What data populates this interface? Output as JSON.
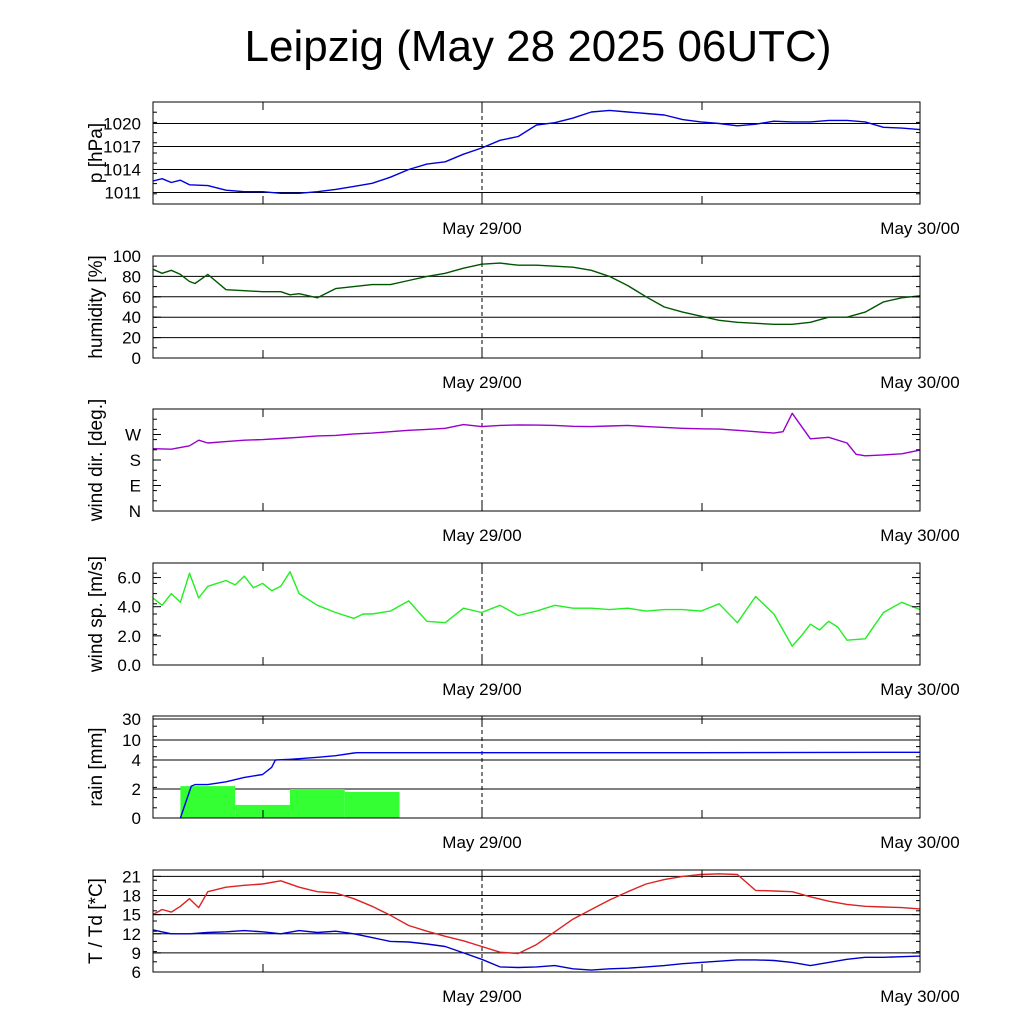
{
  "title": "Leipzig (May 28 2025 06UTC)",
  "colors": {
    "pressure": "#0000dd",
    "humidity": "#005500",
    "wind_dir": "#9900cc",
    "wind_sp": "#22ee22",
    "rain_line": "#0000ee",
    "rain_bar": "#33ff33",
    "temp": "#dd2222",
    "dewpoint": "#0000cc"
  },
  "chart_data": [
    {
      "type": "line",
      "ylabel": "p [hPa]",
      "x_ticks": [
        "May 29/00",
        "May 30/00"
      ],
      "x_range_hours": [
        0,
        42
      ],
      "ylim": [
        1009.5,
        1022.8
      ],
      "y_ticks": [
        "1020",
        "1017",
        "1014",
        "1011"
      ],
      "y_tick_values": [
        1020,
        1017,
        1014,
        1011
      ],
      "grid": true,
      "series": [
        {
          "color_key": "pressure",
          "x": [
            0,
            0.5,
            1,
            1.5,
            2,
            3,
            4,
            5,
            6,
            7,
            8,
            9,
            10,
            11,
            12,
            13,
            14,
            15,
            16,
            17,
            18,
            19,
            20,
            21,
            22,
            23,
            24,
            25,
            26,
            27,
            28,
            29,
            30,
            31,
            32,
            33,
            34,
            35,
            36,
            37,
            38,
            39,
            40,
            41,
            42
          ],
          "y": [
            1012.5,
            1012.8,
            1012.3,
            1012.6,
            1012.0,
            1011.9,
            1011.3,
            1011.1,
            1011.1,
            1010.9,
            1010.9,
            1011.1,
            1011.4,
            1011.8,
            1012.2,
            1013.0,
            1014.0,
            1014.7,
            1015.0,
            1016.0,
            1016.8,
            1017.8,
            1018.3,
            1019.8,
            1020.1,
            1020.7,
            1021.5,
            1021.7,
            1021.5,
            1021.3,
            1021.1,
            1020.5,
            1020.2,
            1020.0,
            1019.7,
            1019.9,
            1020.3,
            1020.2,
            1020.2,
            1020.4,
            1020.4,
            1020.2,
            1019.5,
            1019.4,
            1019.2
          ]
        }
      ]
    },
    {
      "type": "line",
      "ylabel": "humidity [%]",
      "x_ticks": [
        "May 29/00",
        "May 30/00"
      ],
      "x_range_hours": [
        0,
        42
      ],
      "ylim": [
        0,
        100
      ],
      "y_ticks": [
        "100",
        "80",
        "60",
        "40",
        "20",
        "0"
      ],
      "y_tick_values": [
        100,
        80,
        60,
        40,
        20,
        0
      ],
      "grid": true,
      "series": [
        {
          "color_key": "humidity",
          "x": [
            0,
            0.5,
            1,
            1.5,
            2,
            2.3,
            3,
            4,
            5,
            6,
            7,
            7.5,
            8,
            9,
            10,
            11,
            12,
            13,
            14,
            15,
            16,
            17,
            18,
            19,
            20,
            21,
            22,
            23,
            24,
            25,
            26,
            27,
            28,
            29,
            30,
            31,
            32,
            33,
            34,
            35,
            36,
            37,
            38,
            39,
            40,
            41,
            42
          ],
          "y": [
            87,
            83,
            86,
            82,
            75,
            73,
            82,
            67,
            66,
            65,
            65,
            62,
            63,
            59,
            68,
            70,
            72,
            72,
            76,
            80,
            83,
            88,
            92,
            93,
            91,
            91,
            90,
            89,
            86,
            80,
            71,
            60,
            50,
            45,
            41,
            37,
            35,
            34,
            33,
            33,
            35,
            40,
            40,
            45,
            55,
            59,
            61
          ]
        }
      ]
    },
    {
      "type": "line",
      "ylabel": "wind dir. [deg.]",
      "x_ticks": [
        "May 29/00",
        "May 30/00"
      ],
      "x_range_hours": [
        0,
        42
      ],
      "ylim": [
        0,
        360
      ],
      "y_ticks": [
        "W",
        "S",
        "E",
        "N"
      ],
      "y_tick_values": [
        270,
        180,
        90,
        0
      ],
      "grid": false,
      "series": [
        {
          "color_key": "wind_dir",
          "x": [
            0,
            1,
            2,
            2.5,
            3,
            4,
            5,
            6,
            7,
            8,
            9,
            10,
            11,
            12,
            13,
            14,
            15,
            16,
            17,
            18,
            19,
            20,
            21,
            22,
            23,
            24,
            25,
            26,
            27,
            28,
            29,
            30,
            31,
            32,
            33,
            34,
            34.5,
            35,
            36,
            37,
            38,
            38.5,
            39,
            40,
            41,
            42
          ],
          "y": [
            220,
            218,
            230,
            250,
            240,
            245,
            250,
            252,
            256,
            260,
            265,
            267,
            272,
            275,
            280,
            285,
            288,
            292,
            305,
            298,
            302,
            304,
            303,
            302,
            299,
            298,
            300,
            302,
            298,
            295,
            292,
            290,
            289,
            285,
            280,
            275,
            280,
            345,
            255,
            260,
            240,
            200,
            195,
            198,
            202,
            215
          ]
        }
      ]
    },
    {
      "type": "line",
      "ylabel": "wind sp. [m/s]",
      "x_ticks": [
        "May 29/00",
        "May 30/00"
      ],
      "x_range_hours": [
        0,
        42
      ],
      "ylim": [
        0,
        7
      ],
      "y_ticks": [
        "6.0",
        "4.0",
        "2.0",
        "0.0"
      ],
      "y_tick_values": [
        6,
        4,
        2,
        0
      ],
      "grid": false,
      "series": [
        {
          "color_key": "wind_sp",
          "x": [
            0,
            0.5,
            1,
            1.5,
            2,
            2.5,
            3,
            4,
            4.5,
            5,
            5.5,
            6,
            6.5,
            7,
            7.5,
            8,
            9,
            10,
            11,
            11.5,
            12,
            13,
            14,
            15,
            16,
            17,
            18,
            19,
            20,
            21,
            22,
            23,
            24,
            25,
            26,
            27,
            28,
            29,
            30,
            31,
            32,
            33,
            34,
            35,
            35.5,
            36,
            36.5,
            37,
            37.5,
            38,
            39,
            39.5,
            40,
            41,
            42
          ],
          "y": [
            4.6,
            4.1,
            4.9,
            4.3,
            6.3,
            4.6,
            5.4,
            5.8,
            5.5,
            6.1,
            5.3,
            5.6,
            5.1,
            5.4,
            6.4,
            4.9,
            4.1,
            3.6,
            3.2,
            3.5,
            3.5,
            3.7,
            4.4,
            3.0,
            2.9,
            3.9,
            3.6,
            4.1,
            3.4,
            3.7,
            4.1,
            3.9,
            3.9,
            3.8,
            3.9,
            3.7,
            3.8,
            3.8,
            3.7,
            4.2,
            2.9,
            4.7,
            3.5,
            1.3,
            2.0,
            2.8,
            2.4,
            3.0,
            2.6,
            1.7,
            1.8,
            2.7,
            3.6,
            4.3,
            3.8
          ]
        }
      ]
    },
    {
      "type": "bar",
      "ylabel": "rain [mm]",
      "x_ticks": [
        "May 29/00",
        "May 30/00"
      ],
      "x_range_hours": [
        0,
        42
      ],
      "y_scale": "log-like",
      "ylim": [
        0,
        30
      ],
      "y_ticks": [
        "30",
        "10",
        "4",
        "2",
        "0"
      ],
      "y_tick_values": [
        30,
        10,
        4,
        2,
        0
      ],
      "grid": true,
      "bars": [
        {
          "x0": 1.5,
          "x1": 4.5,
          "value": 2.2
        },
        {
          "x0": 4.5,
          "x1": 7.5,
          "value": 0.9
        },
        {
          "x0": 7.5,
          "x1": 10.5,
          "value": 2.0
        },
        {
          "x0": 10.5,
          "x1": 13.5,
          "value": 1.8
        }
      ],
      "series": [
        {
          "color_key": "rain_line",
          "x": [
            1.5,
            2.1,
            2.3,
            3,
            4,
            5,
            6,
            6.5,
            6.7,
            7.5,
            8,
            9,
            10,
            11,
            11.2,
            12,
            20,
            30,
            42
          ],
          "y": [
            0,
            2.2,
            2.3,
            2.3,
            2.5,
            2.8,
            3.0,
            3.5,
            4.0,
            4.2,
            4.4,
            4.8,
            5.3,
            6.1,
            6.2,
            6.2,
            6.2,
            6.2,
            6.3
          ]
        }
      ]
    },
    {
      "type": "line",
      "ylabel": "T / Td [*C]",
      "x_ticks": [
        "May 29/00",
        "May 30/00"
      ],
      "x_range_hours": [
        0,
        42
      ],
      "ylim": [
        6,
        22
      ],
      "y_ticks": [
        "21",
        "18",
        "15",
        "12",
        "9",
        "6"
      ],
      "y_tick_values": [
        21,
        18,
        15,
        12,
        9,
        6
      ],
      "grid": true,
      "series": [
        {
          "color_key": "temp",
          "x": [
            0,
            0.5,
            1,
            1.5,
            2,
            2.5,
            3,
            4,
            5,
            6,
            7,
            8,
            9,
            10,
            11,
            12,
            13,
            14,
            15,
            16,
            17,
            18,
            19,
            20,
            21,
            22,
            23,
            24,
            25,
            26,
            27,
            28,
            29,
            30,
            31,
            32,
            33,
            34,
            35,
            36,
            37,
            38,
            39,
            40,
            41,
            42
          ],
          "y": [
            15.0,
            15.8,
            15.4,
            16.3,
            17.5,
            16.1,
            18.6,
            19.3,
            19.6,
            19.8,
            20.3,
            19.3,
            18.6,
            18.4,
            17.5,
            16.3,
            14.9,
            13.3,
            12.4,
            11.6,
            10.9,
            10.0,
            9.1,
            8.9,
            10.3,
            12.3,
            14.3,
            15.8,
            17.3,
            18.6,
            19.8,
            20.5,
            21.0,
            21.3,
            21.4,
            21.3,
            18.8,
            18.7,
            18.6,
            17.8,
            17.1,
            16.6,
            16.3,
            16.2,
            16.1,
            15.9
          ]
        },
        {
          "color_key": "dewpoint",
          "x": [
            0,
            1,
            2,
            3,
            4,
            5,
            6,
            7,
            8,
            9,
            10,
            11,
            12,
            13,
            14,
            15,
            16,
            17,
            18,
            19,
            20,
            21,
            22,
            23,
            24,
            25,
            26,
            27,
            28,
            29,
            30,
            31,
            32,
            33,
            34,
            35,
            36,
            37,
            38,
            39,
            40,
            41,
            42
          ],
          "y": [
            12.6,
            12.0,
            12.0,
            12.2,
            12.3,
            12.5,
            12.3,
            12.0,
            12.5,
            12.2,
            12.4,
            12.0,
            11.4,
            10.8,
            10.7,
            10.4,
            10.0,
            9.0,
            8.0,
            6.8,
            6.7,
            6.8,
            7.0,
            6.5,
            6.3,
            6.5,
            6.6,
            6.8,
            7.0,
            7.3,
            7.5,
            7.7,
            7.9,
            7.9,
            7.8,
            7.5,
            7.0,
            7.5,
            8.0,
            8.3,
            8.3,
            8.4,
            8.5
          ]
        }
      ]
    }
  ]
}
